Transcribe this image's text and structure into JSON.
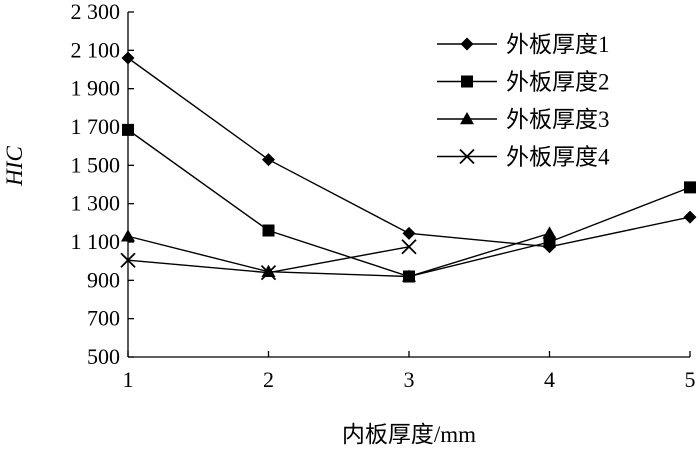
{
  "chart_data": {
    "type": "line",
    "title": "",
    "xlabel": "内板厚度/mm",
    "ylabel": "HIC",
    "x": [
      1,
      2,
      3,
      4,
      5
    ],
    "xticks": [
      "1",
      "2",
      "3",
      "4",
      "5"
    ],
    "xlim": [
      1,
      5
    ],
    "ylim": [
      500,
      2300
    ],
    "yticks": [
      500,
      700,
      900,
      1100,
      1300,
      1500,
      1700,
      1900,
      2100,
      2300
    ],
    "ytick_labels": [
      "500",
      "700",
      "900",
      "1 100",
      "1 300",
      "1 500",
      "1 700",
      "1 900",
      "2 100",
      "2 300"
    ],
    "grid": false,
    "legend_position": "top-right",
    "series": [
      {
        "name": "外板厚度1",
        "marker": "diamond",
        "values": [
          2060,
          1530,
          1145,
          1075,
          1230
        ]
      },
      {
        "name": "外板厚度2",
        "marker": "square",
        "values": [
          1685,
          1160,
          920,
          1100,
          1385
        ]
      },
      {
        "name": "外板厚度3",
        "marker": "triangle",
        "values": [
          1130,
          945,
          920,
          1145,
          null
        ]
      },
      {
        "name": "外板厚度4",
        "marker": "x",
        "values": [
          1005,
          940,
          1075,
          null,
          null
        ]
      }
    ]
  }
}
